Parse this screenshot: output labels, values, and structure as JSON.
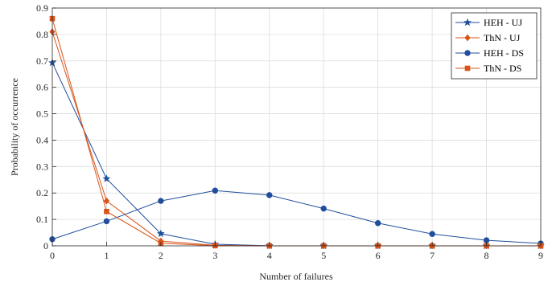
{
  "chart_data": {
    "type": "line",
    "xlabel": "Number of failures",
    "ylabel": "Probability of occurrence",
    "xlim": [
      0,
      9
    ],
    "ylim": [
      0,
      0.9
    ],
    "x_ticks": [
      "0",
      "1",
      "2",
      "3",
      "4",
      "5",
      "6",
      "7",
      "8",
      "9"
    ],
    "y_ticks": [
      "0",
      "0.1",
      "0.2",
      "0.3",
      "0.4",
      "0.5",
      "0.6",
      "0.7",
      "0.8",
      "0.9"
    ],
    "grid": true,
    "legend_position": "top-right",
    "x": [
      0,
      1,
      2,
      3,
      4,
      5,
      6,
      7,
      8,
      9
    ],
    "series": [
      {
        "name": "HEH - UJ",
        "marker": "star",
        "color": "#1f4e9c",
        "values": [
          0.693,
          0.254,
          0.046,
          0.006,
          0.0005,
          0.0,
          0.0,
          0.0,
          0.0,
          0.0
        ]
      },
      {
        "name": "ThN - UJ",
        "marker": "diamond",
        "color": "#d95319",
        "values": [
          0.81,
          0.17,
          0.018,
          0.002,
          0.0,
          0.0,
          0.0,
          0.0,
          0.0,
          0.0
        ]
      },
      {
        "name": "HEH - DS",
        "marker": "circle",
        "color": "#1f4e9c",
        "values": [
          0.025,
          0.093,
          0.17,
          0.209,
          0.192,
          0.141,
          0.086,
          0.045,
          0.021,
          0.009
        ]
      },
      {
        "name": "ThN - DS",
        "marker": "square",
        "color": "#d95319",
        "values": [
          0.86,
          0.13,
          0.01,
          0.0005,
          0.0,
          0.0,
          0.0,
          0.0,
          0.0,
          0.0
        ]
      }
    ]
  }
}
